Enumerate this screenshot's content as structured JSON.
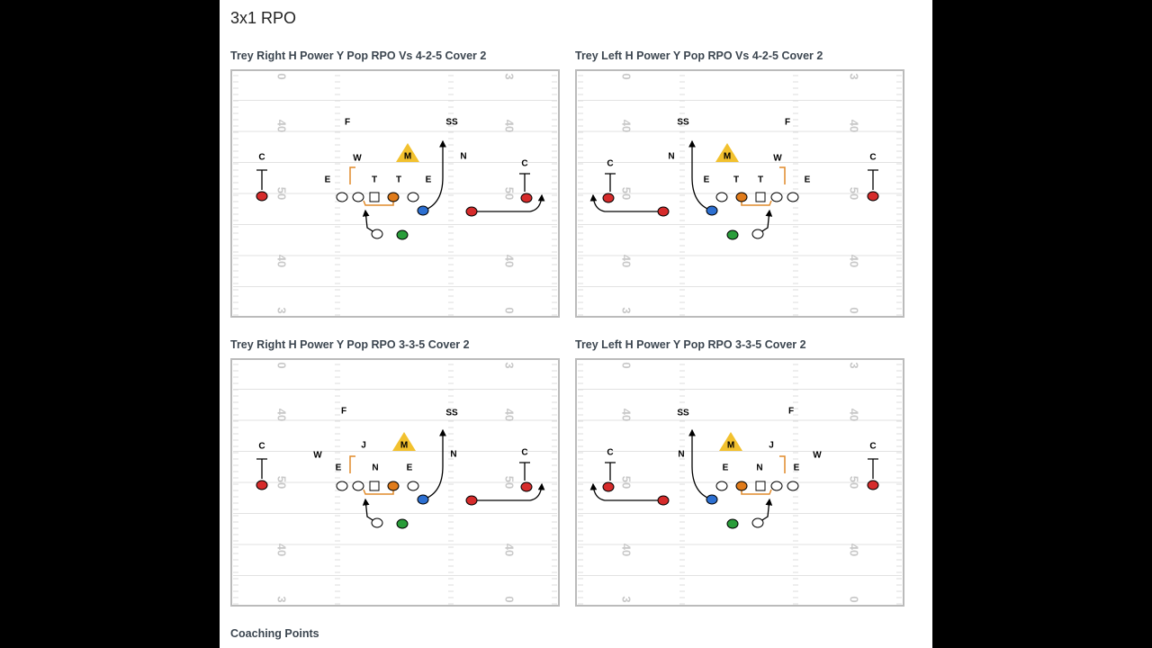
{
  "page": {
    "title": "3x1 RPO",
    "footer": "Coaching Points"
  },
  "field_numbers": {
    "left": [
      "0",
      "40",
      "50",
      "40",
      "3"
    ],
    "right": [
      "3",
      "40",
      "50",
      "40",
      "0"
    ]
  },
  "diagrams": [
    {
      "title": "Trey Right H Power Y Pop RPO Vs 4-2-5 Cover 2",
      "defenders": [
        "C",
        "F",
        "W",
        "M",
        "SS",
        "N",
        "E",
        "T",
        "T",
        "E",
        "C"
      ]
    },
    {
      "title": "Trey Left H Power Y Pop RPO Vs 4-2-5 Cover 2",
      "defenders": [
        "C",
        "F",
        "W",
        "M",
        "SS",
        "N",
        "E",
        "T",
        "T",
        "E",
        "C"
      ]
    },
    {
      "title": "Trey Right H Power Y Pop RPO 3-3-5 Cover 2",
      "defenders": [
        "C",
        "F",
        "J",
        "M",
        "SS",
        "N",
        "W",
        "E",
        "N",
        "E",
        "C"
      ]
    },
    {
      "title": "Trey Left H Power Y Pop RPO 3-3-5 Cover 2",
      "defenders": [
        "C",
        "F",
        "J",
        "M",
        "SS",
        "N",
        "W",
        "E",
        "N",
        "E",
        "C"
      ]
    }
  ]
}
